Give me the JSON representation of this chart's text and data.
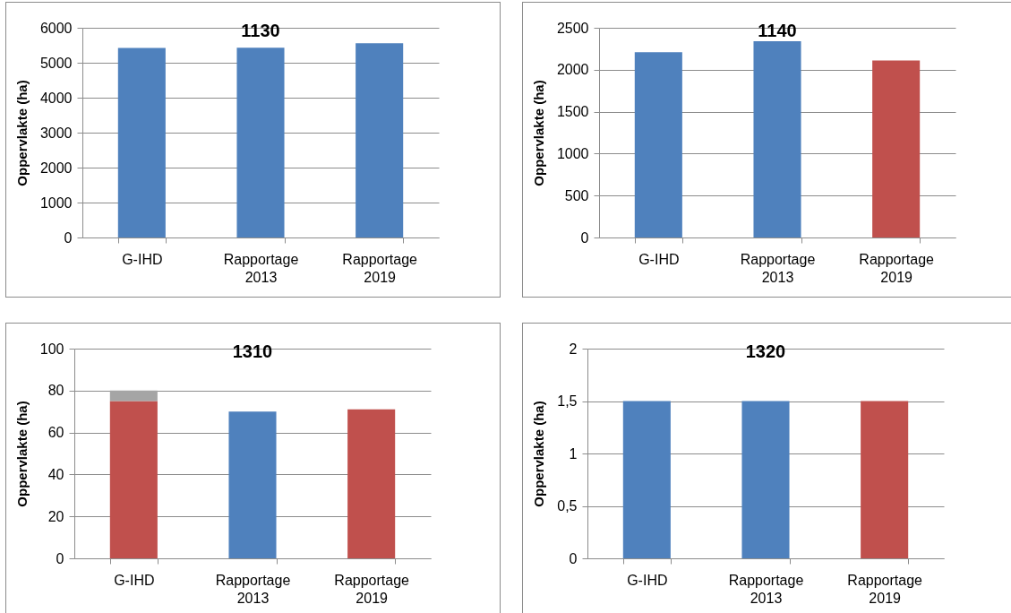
{
  "chart_data": [
    {
      "type": "bar",
      "title": "1130",
      "ylabel": "Oppervlakte (ha)",
      "categories": [
        "G-IHD",
        "Rapportage 2013",
        "Rapportage 2019"
      ],
      "values": [
        5420,
        5430,
        5560
      ],
      "colors": [
        "#4f81bd",
        "#4f81bd",
        "#4f81bd"
      ],
      "ylim": [
        0,
        6000
      ],
      "yticks": [
        0,
        1000,
        2000,
        3000,
        4000,
        5000,
        6000
      ],
      "grid": "y"
    },
    {
      "type": "bar",
      "title": "1140",
      "ylabel": "Oppervlakte (ha)",
      "categories": [
        "G-IHD",
        "Rapportage 2013",
        "Rapportage 2019"
      ],
      "values": [
        2210,
        2340,
        2110
      ],
      "colors": [
        "#4f81bd",
        "#4f81bd",
        "#c0504d"
      ],
      "ylim": [
        0,
        2500
      ],
      "yticks": [
        0,
        500,
        1000,
        1500,
        2000,
        2500
      ],
      "grid": "y"
    },
    {
      "type": "bar",
      "title": "1310",
      "ylabel": "Oppervlakte (ha)",
      "categories": [
        "G-IHD",
        "Rapportage 2013",
        "Rapportage 2019"
      ],
      "stacked": true,
      "series": [
        {
          "values": [
            75,
            70,
            71
          ],
          "colors": [
            "#c0504d",
            "#4f81bd",
            "#c0504d"
          ]
        },
        {
          "values": [
            5,
            null,
            null
          ],
          "color": "#a5a5a5"
        }
      ],
      "ylim": [
        0,
        100
      ],
      "yticks": [
        0,
        20,
        40,
        60,
        80,
        100
      ],
      "grid": "y"
    },
    {
      "type": "bar",
      "title": "1320",
      "ylabel": "Oppervlakte (ha)",
      "categories": [
        "G-IHD",
        "Rapportage 2013",
        "Rapportage 2019"
      ],
      "values": [
        1.5,
        1.5,
        1.5
      ],
      "colors": [
        "#4f81bd",
        "#4f81bd",
        "#c0504d"
      ],
      "ylim": [
        0,
        2
      ],
      "yticks": [
        0,
        {
          "value": 0.5,
          "label": "0,5"
        },
        1,
        {
          "value": 1.5,
          "label": "1,5"
        },
        2
      ],
      "grid": "y"
    }
  ]
}
